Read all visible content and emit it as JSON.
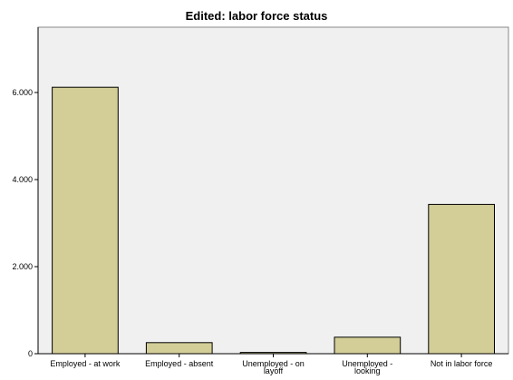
{
  "chart_data": {
    "type": "bar",
    "title": "Edited: labor force status",
    "categories": [
      [
        "Employed - at work"
      ],
      [
        "Employed - absent"
      ],
      [
        "Unemployed - on",
        "layoff"
      ],
      [
        "Unemployed -",
        "looking"
      ],
      [
        "Not in labor force"
      ]
    ],
    "values": [
      6120,
      255,
      30,
      380,
      3430
    ],
    "yticks": [
      0,
      2000,
      4000,
      6000
    ],
    "ytick_labels": [
      "0",
      "2.000",
      "4.000",
      "6.000"
    ],
    "ylim": [
      0,
      7500
    ],
    "grid": false,
    "colors": {
      "bar_fill": "#d3ce97",
      "bar_stroke": "#000000",
      "plot_bg": "#f0f0f0",
      "axis": "#000000"
    }
  }
}
